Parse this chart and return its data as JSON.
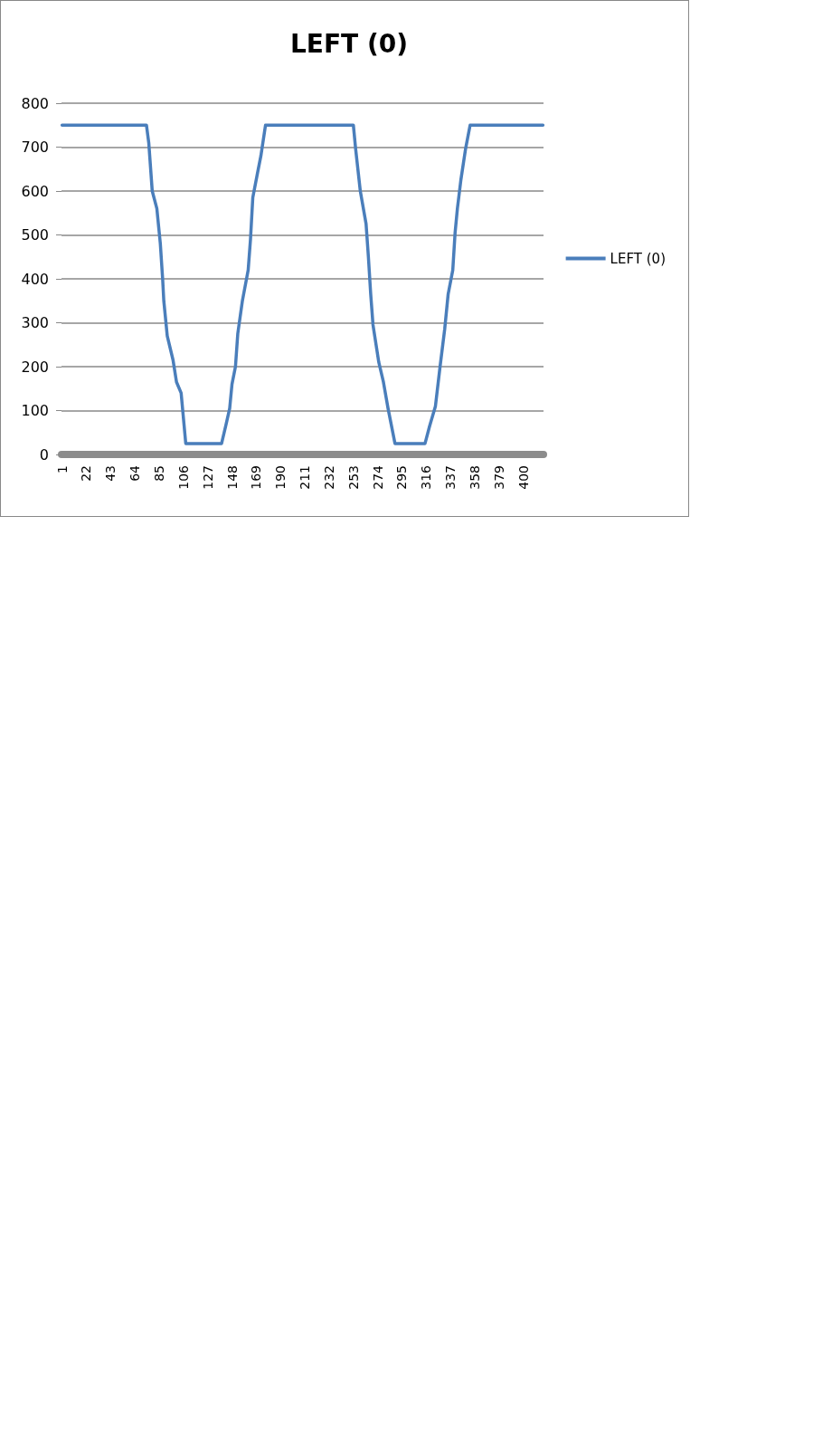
{
  "chart_data": {
    "type": "line",
    "title": "LEFT (0)",
    "series": [
      {
        "name": "LEFT (0)",
        "color": "#4a7ebb",
        "x": [
          1,
          74,
          76,
          79,
          83,
          86,
          88,
          89,
          92,
          97,
          100,
          104,
          108,
          139,
          143,
          146,
          148,
          151,
          153,
          157,
          162,
          164,
          166,
          170,
          173,
          177,
          253,
          255,
          259,
          264,
          266,
          268,
          270,
          275,
          279,
          283,
          289,
          315,
          319,
          324,
          328,
          332,
          335,
          339,
          341,
          343,
          346,
          350,
          354,
          417
        ],
        "values": [
          750,
          750,
          710,
          600,
          560,
          480,
          400,
          350,
          270,
          215,
          165,
          140,
          25,
          25,
          70,
          105,
          160,
          200,
          275,
          350,
          420,
          490,
          585,
          640,
          680,
          750,
          750,
          695,
          600,
          525,
          450,
          365,
          295,
          210,
          165,
          105,
          25,
          25,
          65,
          110,
          200,
          285,
          365,
          420,
          505,
          560,
          625,
          695,
          750,
          750
        ]
      }
    ],
    "xlim": [
      0.5,
      417.5
    ],
    "xticks": [
      1,
      22,
      43,
      64,
      85,
      106,
      127,
      148,
      169,
      190,
      211,
      232,
      253,
      274,
      295,
      316,
      337,
      358,
      379,
      400
    ],
    "ylim": [
      0,
      800
    ],
    "yticks": [
      0,
      100,
      200,
      300,
      400,
      500,
      600,
      700,
      800
    ],
    "grid": "y",
    "legend": "right",
    "marker": "none",
    "line_style": "solid"
  }
}
